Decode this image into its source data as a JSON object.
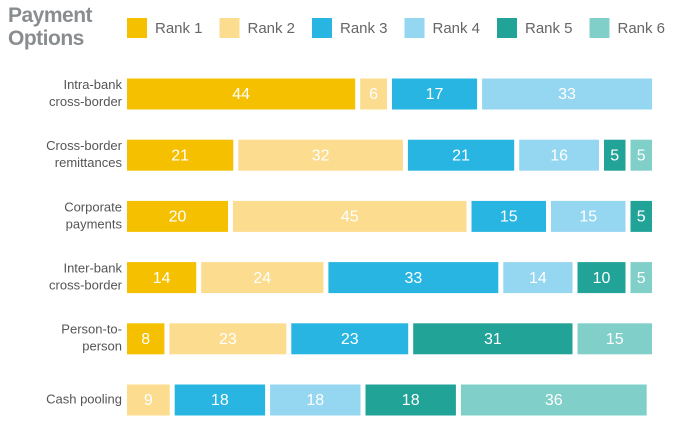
{
  "chart_data": {
    "type": "stacked-bar-horizontal",
    "title": "Payment Options",
    "categories": [
      [
        "Intra-bank",
        "cross-border"
      ],
      [
        "Cross-border",
        "remittances"
      ],
      [
        "Corporate",
        "payments"
      ],
      [
        "Inter-bank",
        "cross-border"
      ],
      [
        "Person-to-",
        "person"
      ],
      [
        "Cash pooling"
      ]
    ],
    "series": [
      {
        "name": "Rank 1",
        "color": "#f5c000",
        "values": [
          44,
          21,
          20,
          14,
          8,
          null
        ]
      },
      {
        "name": "Rank 2",
        "color": "#fcdc8e",
        "values": [
          6,
          32,
          45,
          24,
          23,
          9
        ]
      },
      {
        "name": "Rank 3",
        "color": "#28b5e2",
        "values": [
          17,
          21,
          15,
          33,
          23,
          18
        ]
      },
      {
        "name": "Rank 4",
        "color": "#95d6f0",
        "values": [
          33,
          16,
          15,
          14,
          null,
          18
        ]
      },
      {
        "name": "Rank 5",
        "color": "#22a398",
        "values": [
          null,
          5,
          5,
          10,
          31,
          18
        ]
      },
      {
        "name": "Rank 6",
        "color": "#80cfc9",
        "values": [
          null,
          5,
          null,
          5,
          15,
          36
        ]
      }
    ],
    "xlim": [
      0,
      100
    ]
  }
}
